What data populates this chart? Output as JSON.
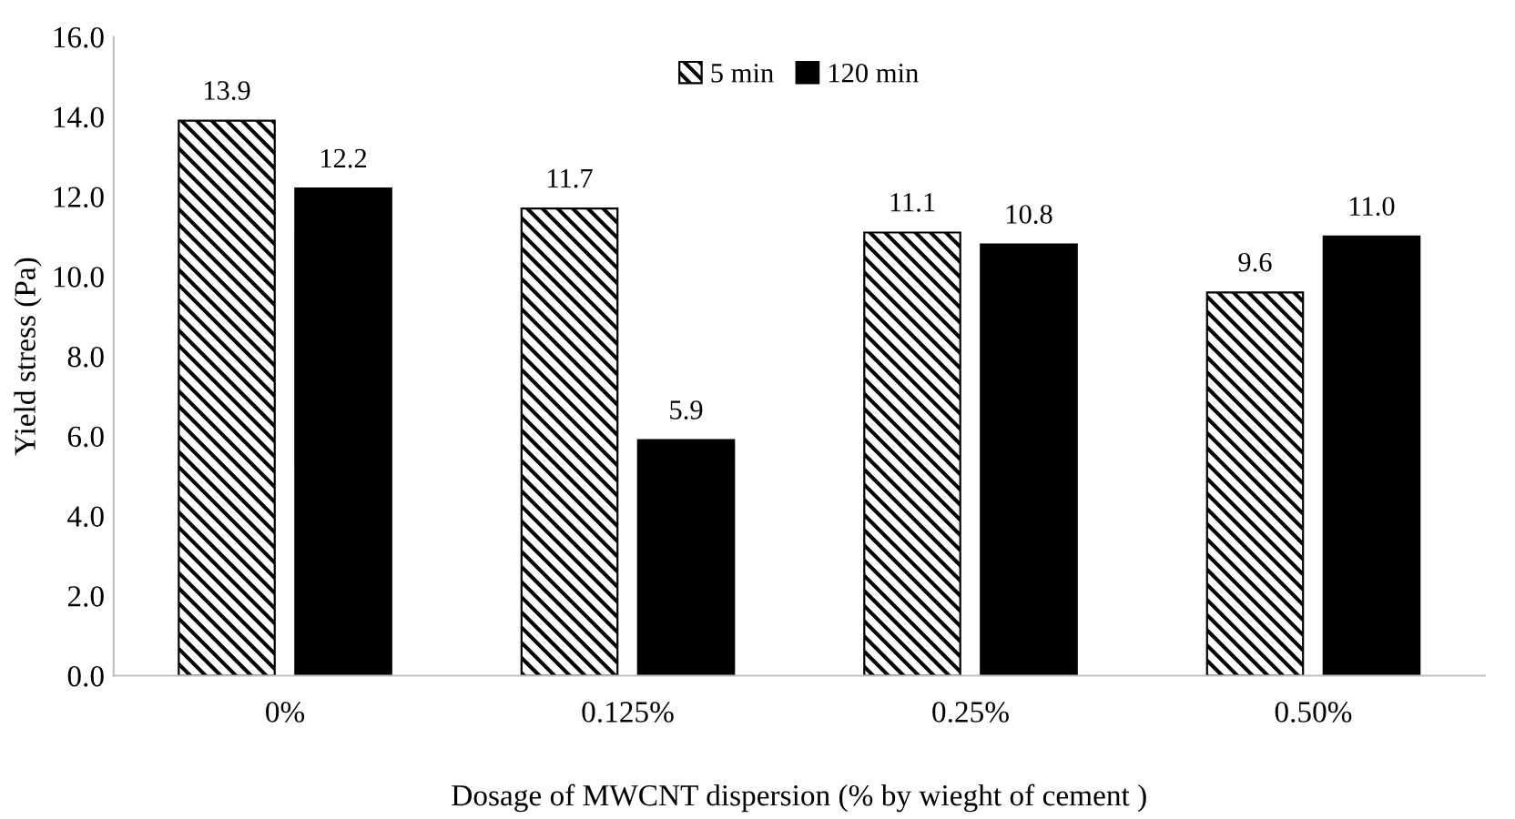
{
  "chart_data": {
    "type": "bar",
    "xlabel": "Dosage of MWCNT dispersion (% by wieght of cement )",
    "ylabel": "Yield stress (Pa)",
    "categories": [
      "0%",
      "0.125%",
      "0.25%",
      "0.50%"
    ],
    "series": [
      {
        "name": "5 min",
        "color": "#000000",
        "values": [
          13.9,
          11.7,
          11.1,
          9.6
        ],
        "value_labels": [
          "13.9",
          "11.7",
          "11.1",
          "9.6"
        ]
      },
      {
        "name": "120 min",
        "color": "#000000",
        "values": [
          12.2,
          5.9,
          10.8,
          11.0
        ],
        "value_labels": [
          "12.2",
          "5.9",
          "10.8",
          "11.0"
        ]
      }
    ],
    "ylim": [
      0,
      16
    ],
    "yticks": [
      {
        "value": 0,
        "label": "0.0"
      },
      {
        "value": 2,
        "label": "2.0"
      },
      {
        "value": 4,
        "label": "4.0"
      },
      {
        "value": 6,
        "label": "6.0"
      },
      {
        "value": 8,
        "label": "8.0"
      },
      {
        "value": 10,
        "label": "10.0"
      },
      {
        "value": 12,
        "label": "12.0"
      },
      {
        "value": 14,
        "label": "14.0"
      },
      {
        "value": 16,
        "label": "16.0"
      }
    ],
    "legend": "top",
    "grid": false
  }
}
